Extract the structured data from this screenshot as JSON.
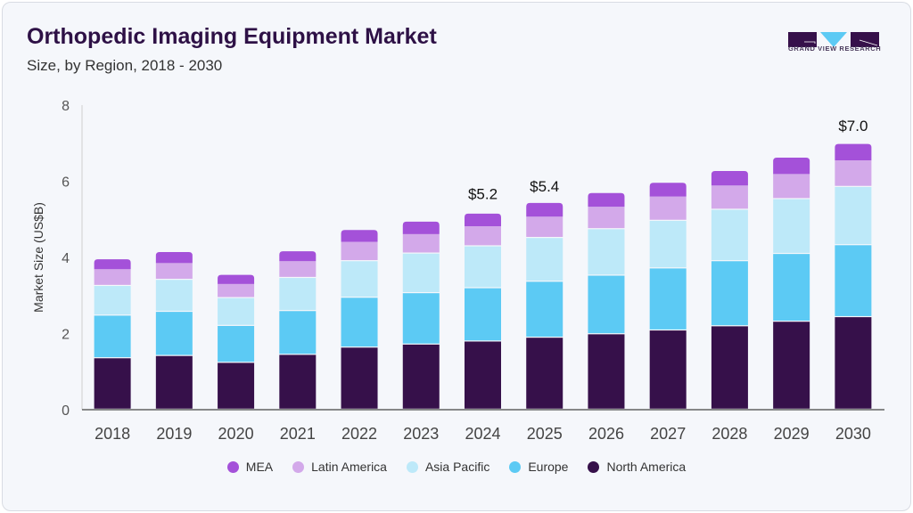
{
  "header": {
    "title": "Orthopedic Imaging Equipment Market",
    "subtitle": "Size, by Region, 2018 - 2030",
    "logo_text": "GRAND VIEW RESEARCH"
  },
  "chart_data": {
    "type": "bar",
    "stacked": true,
    "title": "Orthopedic Imaging Equipment Market",
    "subtitle": "Size, by Region, 2018 - 2030",
    "ylabel": "Market Size (US$B)",
    "xlabel": "",
    "ylim": [
      0,
      8
    ],
    "yticks": [
      0,
      2,
      4,
      6,
      8
    ],
    "grid": false,
    "legend_position": "bottom",
    "categories": [
      "2018",
      "2019",
      "2020",
      "2021",
      "2022",
      "2023",
      "2024",
      "2025",
      "2026",
      "2027",
      "2028",
      "2029",
      "2030"
    ],
    "series": [
      {
        "name": "North America",
        "color": "#36104a",
        "values": [
          1.35,
          1.41,
          1.23,
          1.44,
          1.63,
          1.71,
          1.79,
          1.89,
          1.98,
          2.08,
          2.19,
          2.31,
          2.43
        ]
      },
      {
        "name": "Europe",
        "color": "#5ccaf4",
        "values": [
          1.12,
          1.16,
          0.97,
          1.15,
          1.31,
          1.35,
          1.4,
          1.47,
          1.54,
          1.63,
          1.71,
          1.78,
          1.89
        ]
      },
      {
        "name": "Asia Pacific",
        "color": "#bde9f9",
        "values": [
          0.78,
          0.84,
          0.73,
          0.87,
          0.96,
          1.04,
          1.1,
          1.15,
          1.22,
          1.25,
          1.35,
          1.44,
          1.53
        ]
      },
      {
        "name": "Latin America",
        "color": "#d3a9ea",
        "values": [
          0.44,
          0.44,
          0.37,
          0.44,
          0.51,
          0.51,
          0.53,
          0.56,
          0.59,
          0.64,
          0.64,
          0.66,
          0.7
        ]
      },
      {
        "name": "MEA",
        "color": "#a451d9",
        "values": [
          0.26,
          0.29,
          0.24,
          0.26,
          0.31,
          0.33,
          0.33,
          0.36,
          0.36,
          0.36,
          0.38,
          0.43,
          0.43
        ]
      }
    ],
    "annotations": [
      {
        "category": "2024",
        "label": "$5.2",
        "value": 5.2
      },
      {
        "category": "2025",
        "label": "$5.4",
        "value": 5.4
      },
      {
        "category": "2030",
        "label": "$7.0",
        "value": 7.0
      }
    ],
    "legend_order": [
      "MEA",
      "Latin America",
      "Asia Pacific",
      "Europe",
      "North America"
    ]
  }
}
